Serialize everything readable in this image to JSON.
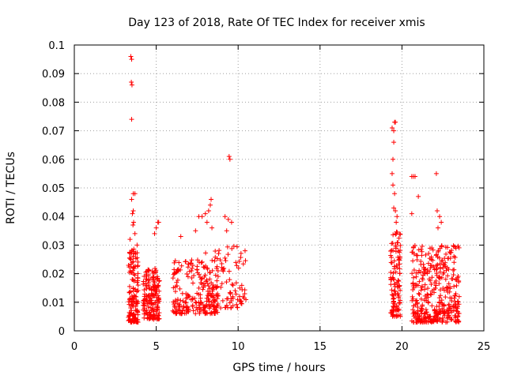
{
  "chart_data": {
    "type": "scatter",
    "title": "Day 123 of 2018, Rate Of TEC Index for receiver xmis",
    "xlabel": "GPS time / hours",
    "ylabel": "ROTI / TECUs",
    "xlim": [
      0,
      25
    ],
    "ylim": [
      0,
      0.1
    ],
    "x_ticks": [
      "0",
      "5",
      "10",
      "15",
      "20",
      "25"
    ],
    "y_ticks": [
      "0",
      "0.01",
      "0.02",
      "0.03",
      "0.04",
      "0.05",
      "0.06",
      "0.07",
      "0.08",
      "0.09",
      "0.1"
    ],
    "grid": true,
    "marker": "+",
    "color": "#ff0000",
    "clusters": [
      {
        "x_range": [
          3.3,
          3.9
        ],
        "y_range": [
          0.003,
          0.03
        ],
        "count": 140
      },
      {
        "x_range": [
          4.2,
          5.2
        ],
        "y_range": [
          0.004,
          0.022
        ],
        "count": 170
      },
      {
        "x_range": [
          6.0,
          8.8
        ],
        "y_range": [
          0.006,
          0.025
        ],
        "count": 210
      },
      {
        "x_range": [
          8.0,
          10.5
        ],
        "y_range": [
          0.008,
          0.03
        ],
        "count": 110
      },
      {
        "x_range": [
          19.3,
          19.9
        ],
        "y_range": [
          0.005,
          0.035
        ],
        "count": 120
      },
      {
        "x_range": [
          20.6,
          23.5
        ],
        "y_range": [
          0.003,
          0.03
        ],
        "count": 380
      }
    ],
    "points": [
      [
        3.45,
        0.096
      ],
      [
        3.5,
        0.095
      ],
      [
        3.48,
        0.087
      ],
      [
        3.52,
        0.086
      ],
      [
        3.5,
        0.074
      ],
      [
        3.6,
        0.048
      ],
      [
        3.7,
        0.048
      ],
      [
        3.5,
        0.046
      ],
      [
        3.6,
        0.042
      ],
      [
        3.55,
        0.041
      ],
      [
        3.62,
        0.038
      ],
      [
        3.58,
        0.037
      ],
      [
        3.7,
        0.034
      ],
      [
        3.4,
        0.032
      ],
      [
        4.9,
        0.034
      ],
      [
        5.0,
        0.036
      ],
      [
        5.1,
        0.038
      ],
      [
        5.15,
        0.038
      ],
      [
        6.5,
        0.033
      ],
      [
        7.4,
        0.035
      ],
      [
        7.6,
        0.04
      ],
      [
        7.8,
        0.04
      ],
      [
        8.0,
        0.041
      ],
      [
        8.2,
        0.042
      ],
      [
        8.3,
        0.044
      ],
      [
        8.35,
        0.046
      ],
      [
        8.1,
        0.038
      ],
      [
        8.4,
        0.036
      ],
      [
        9.45,
        0.061
      ],
      [
        9.5,
        0.06
      ],
      [
        9.2,
        0.04
      ],
      [
        9.4,
        0.039
      ],
      [
        9.6,
        0.038
      ],
      [
        9.3,
        0.035
      ],
      [
        19.4,
        0.071
      ],
      [
        19.5,
        0.07
      ],
      [
        19.55,
        0.073
      ],
      [
        19.6,
        0.073
      ],
      [
        19.5,
        0.066
      ],
      [
        19.45,
        0.06
      ],
      [
        19.4,
        0.055
      ],
      [
        19.45,
        0.051
      ],
      [
        19.55,
        0.048
      ],
      [
        19.5,
        0.043
      ],
      [
        19.6,
        0.042
      ],
      [
        19.7,
        0.04
      ],
      [
        19.65,
        0.038
      ],
      [
        20.6,
        0.054
      ],
      [
        20.7,
        0.054
      ],
      [
        20.8,
        0.054
      ],
      [
        21.0,
        0.047
      ],
      [
        20.6,
        0.041
      ],
      [
        22.1,
        0.055
      ],
      [
        22.15,
        0.042
      ],
      [
        22.3,
        0.04
      ],
      [
        22.4,
        0.038
      ],
      [
        22.2,
        0.036
      ]
    ]
  }
}
